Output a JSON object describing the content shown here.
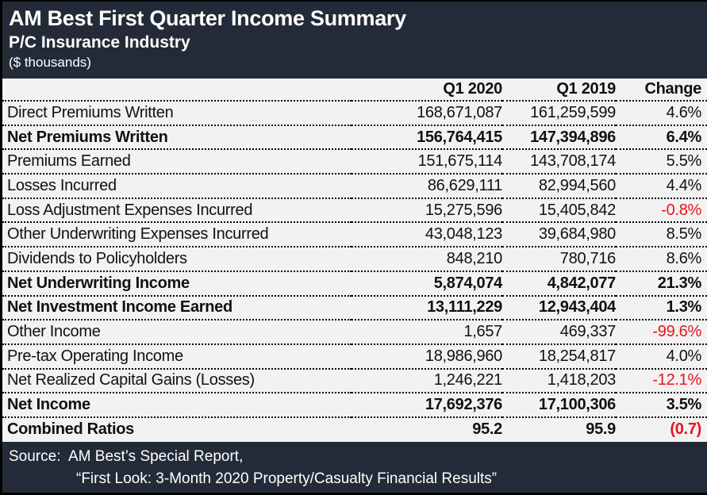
{
  "colors": {
    "header_bg": "#242b38",
    "table_bg": "#f2f2f2",
    "negative": "#e8131c",
    "text": "#111111"
  },
  "header": {
    "title": "AM Best First Quarter Income Summary",
    "subtitle": "P/C Insurance Industry",
    "units": "($ thousands)"
  },
  "table": {
    "columns": [
      "",
      "Q1 2020",
      "Q1 2019",
      "Change"
    ],
    "rows": [
      {
        "label": "Direct Premiums Written",
        "q1_2020": "168,671,087",
        "q1_2019": "161,259,599",
        "change": "4.6%",
        "bold": false,
        "negative": false
      },
      {
        "label": "Net Premiums Written",
        "q1_2020": "156,764,415",
        "q1_2019": "147,394,896",
        "change": "6.4%",
        "bold": true,
        "negative": false
      },
      {
        "label": "Premiums Earned",
        "q1_2020": "151,675,114",
        "q1_2019": "143,708,174",
        "change": "5.5%",
        "bold": false,
        "negative": false
      },
      {
        "label": "Losses Incurred",
        "q1_2020": "86,629,111",
        "q1_2019": "82,994,560",
        "change": "4.4%",
        "bold": false,
        "negative": false
      },
      {
        "label": "Loss Adjustment Expenses Incurred",
        "q1_2020": "15,275,596",
        "q1_2019": "15,405,842",
        "change": "-0.8%",
        "bold": false,
        "negative": true
      },
      {
        "label": "Other Underwriting Expenses Incurred",
        "q1_2020": "43,048,123",
        "q1_2019": "39,684,980",
        "change": "8.5%",
        "bold": false,
        "negative": false
      },
      {
        "label": "Dividends to Policyholders",
        "q1_2020": "848,210",
        "q1_2019": "780,716",
        "change": "8.6%",
        "bold": false,
        "negative": false
      },
      {
        "label": "Net Underwriting Income",
        "q1_2020": "5,874,074",
        "q1_2019": "4,842,077",
        "change": "21.3%",
        "bold": true,
        "negative": false
      },
      {
        "label": "Net Investment Income Earned",
        "q1_2020": "13,111,229",
        "q1_2019": "12,943,404",
        "change": "1.3%",
        "bold": true,
        "negative": false
      },
      {
        "label": "Other Income",
        "q1_2020": "1,657",
        "q1_2019": "469,337",
        "change": "-99.6%",
        "bold": false,
        "negative": true
      },
      {
        "label": "Pre-tax Operating Income",
        "q1_2020": "18,986,960",
        "q1_2019": "18,254,817",
        "change": "4.0%",
        "bold": false,
        "negative": false
      },
      {
        "label": "Net Realized Capital Gains (Losses)",
        "q1_2020": "1,246,221",
        "q1_2019": "1,418,203",
        "change": "-12.1%",
        "bold": false,
        "negative": true
      },
      {
        "label": "Net Income",
        "q1_2020": "17,692,376",
        "q1_2019": "17,100,306",
        "change": "3.5%",
        "bold": true,
        "negative": false
      },
      {
        "label": "Combined Ratios",
        "q1_2020": "95.2",
        "q1_2019": "95.9",
        "change": "(0.7)",
        "bold": true,
        "negative": true
      }
    ]
  },
  "footer": {
    "line1": "Source:  AM Best’s Special Report,",
    "line2": "“First Look: 3-Month 2020 Property/Casualty Financial Results”"
  }
}
